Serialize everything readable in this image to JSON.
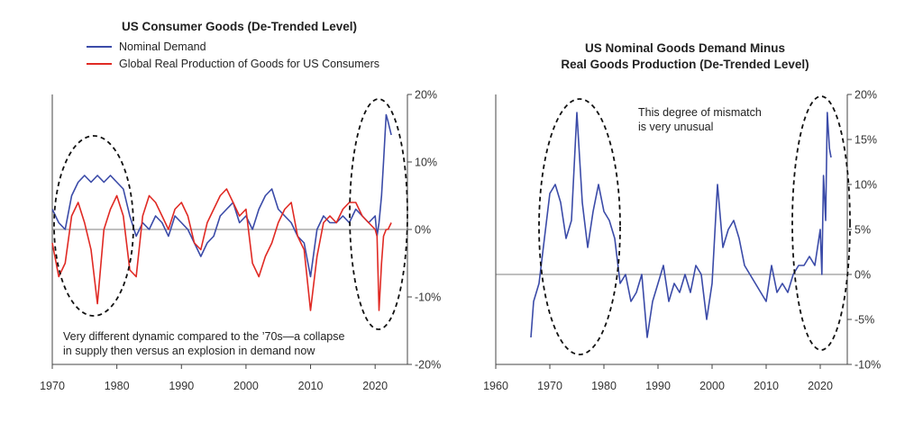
{
  "chart_data": [
    {
      "type": "line",
      "title": "US Consumer Goods (De-Trended Level)",
      "xlabel": "",
      "ylabel": "",
      "xlim": [
        1970,
        2025
      ],
      "ylim": [
        -20,
        20
      ],
      "x_ticks": [
        1970,
        1980,
        1990,
        2000,
        2010,
        2020
      ],
      "y_ticks": [
        20,
        10,
        0,
        -10,
        -20
      ],
      "y_tick_labels": [
        "20%",
        "10%",
        "0%",
        "-10%",
        "-20%"
      ],
      "y_axis_side": "right",
      "legend_position": "top-left",
      "grid": false,
      "series": [
        {
          "name": "Nominal Demand",
          "color": "#3b4ba8",
          "x": [
            1970,
            1971,
            1972,
            1973,
            1974,
            1975,
            1976,
            1977,
            1978,
            1979,
            1980,
            1981,
            1982,
            1983,
            1984,
            1985,
            1986,
            1987,
            1988,
            1989,
            1990,
            1991,
            1992,
            1993,
            1994,
            1995,
            1996,
            1997,
            1998,
            1999,
            2000,
            2001,
            2002,
            2003,
            2004,
            2005,
            2006,
            2007,
            2008,
            2009,
            2010,
            2011,
            2012,
            2013,
            2014,
            2015,
            2016,
            2017,
            2018,
            2019,
            2020,
            2020.3,
            2020.6,
            2021,
            2021.3,
            2021.7,
            2022,
            2022.5
          ],
          "y": [
            3,
            1,
            0,
            5,
            7,
            8,
            7,
            8,
            7,
            8,
            7,
            6,
            2,
            -1,
            1,
            0,
            2,
            1,
            -1,
            2,
            1,
            0,
            -2,
            -4,
            -2,
            -1,
            2,
            3,
            4,
            1,
            2,
            0,
            3,
            5,
            6,
            3,
            2,
            1,
            -1,
            -2,
            -7,
            0,
            2,
            1,
            1,
            2,
            1,
            3,
            2,
            1,
            2,
            -1,
            1,
            5,
            10,
            17,
            16,
            14
          ]
        },
        {
          "name": "Global Real Production of Goods for US Consumers",
          "color": "#e02a24",
          "x": [
            1970,
            1971,
            1972,
            1973,
            1974,
            1975,
            1976,
            1977,
            1978,
            1979,
            1980,
            1981,
            1982,
            1983,
            1984,
            1985,
            1986,
            1987,
            1988,
            1989,
            1990,
            1991,
            1992,
            1993,
            1994,
            1995,
            1996,
            1997,
            1998,
            1999,
            2000,
            2001,
            2002,
            2003,
            2004,
            2005,
            2006,
            2007,
            2008,
            2009,
            2010,
            2011,
            2012,
            2013,
            2014,
            2015,
            2016,
            2017,
            2018,
            2019,
            2020,
            2020.3,
            2020.6,
            2021,
            2021.3,
            2021.7,
            2022,
            2022.5
          ],
          "y": [
            -2,
            -7,
            -5,
            2,
            4,
            1,
            -3,
            -11,
            0,
            3,
            5,
            2,
            -6,
            -7,
            2,
            5,
            4,
            2,
            0,
            3,
            4,
            2,
            -2,
            -3,
            1,
            3,
            5,
            6,
            4,
            2,
            3,
            -5,
            -7,
            -4,
            -2,
            1,
            3,
            4,
            -1,
            -3,
            -12,
            -4,
            1,
            2,
            1,
            3,
            4,
            4,
            2,
            1,
            0,
            -1,
            -12,
            -5,
            -1,
            0,
            0,
            1
          ]
        }
      ],
      "annotations": [
        "Very different dynamic compared to the ’70s—a collapse",
        "in supply then versus an explosion in demand now"
      ]
    },
    {
      "type": "line",
      "title": "US Nominal Goods Demand Minus",
      "subtitle": "Real Goods Production (De-Trended Level)",
      "xlabel": "",
      "ylabel": "",
      "xlim": [
        1960,
        2025
      ],
      "ylim": [
        -10,
        20
      ],
      "x_ticks": [
        1960,
        1970,
        1980,
        1990,
        2000,
        2010,
        2020
      ],
      "y_ticks": [
        20,
        15,
        10,
        5,
        0,
        -5,
        -10
      ],
      "y_tick_labels": [
        "20%",
        "15%",
        "10%",
        "5%",
        "0%",
        "-5%",
        "-10%"
      ],
      "y_axis_side": "right",
      "grid": false,
      "series": [
        {
          "color": "#3b4ba8",
          "x": [
            1966.5,
            1967,
            1968,
            1969,
            1970,
            1971,
            1972,
            1973,
            1974,
            1975,
            1976,
            1977,
            1978,
            1979,
            1980,
            1981,
            1982,
            1983,
            1984,
            1985,
            1986,
            1987,
            1988,
            1989,
            1990,
            1991,
            1992,
            1993,
            1994,
            1995,
            1996,
            1997,
            1998,
            1999,
            2000,
            2001,
            2002,
            2003,
            2004,
            2005,
            2006,
            2007,
            2008,
            2009,
            2010,
            2011,
            2012,
            2013,
            2014,
            2015,
            2016,
            2017,
            2018,
            2019,
            2020,
            2020.3,
            2020.6,
            2021,
            2021.3,
            2021.7,
            2022
          ],
          "y": [
            -7,
            -3,
            -1,
            4,
            9,
            10,
            8,
            4,
            6,
            18,
            8,
            3,
            7,
            10,
            7,
            6,
            4,
            -1,
            0,
            -3,
            -2,
            0,
            -7,
            -3,
            -1,
            1,
            -3,
            -1,
            -2,
            0,
            -2,
            1,
            0,
            -5,
            -1,
            10,
            3,
            5,
            6,
            4,
            1,
            0,
            -1,
            -2,
            -3,
            1,
            -2,
            -1,
            -2,
            0,
            1,
            1,
            2,
            1,
            5,
            0,
            11,
            6,
            18,
            14,
            13
          ]
        }
      ],
      "annotations": [
        "This degree of mismatch",
        "is very unusual"
      ]
    }
  ]
}
